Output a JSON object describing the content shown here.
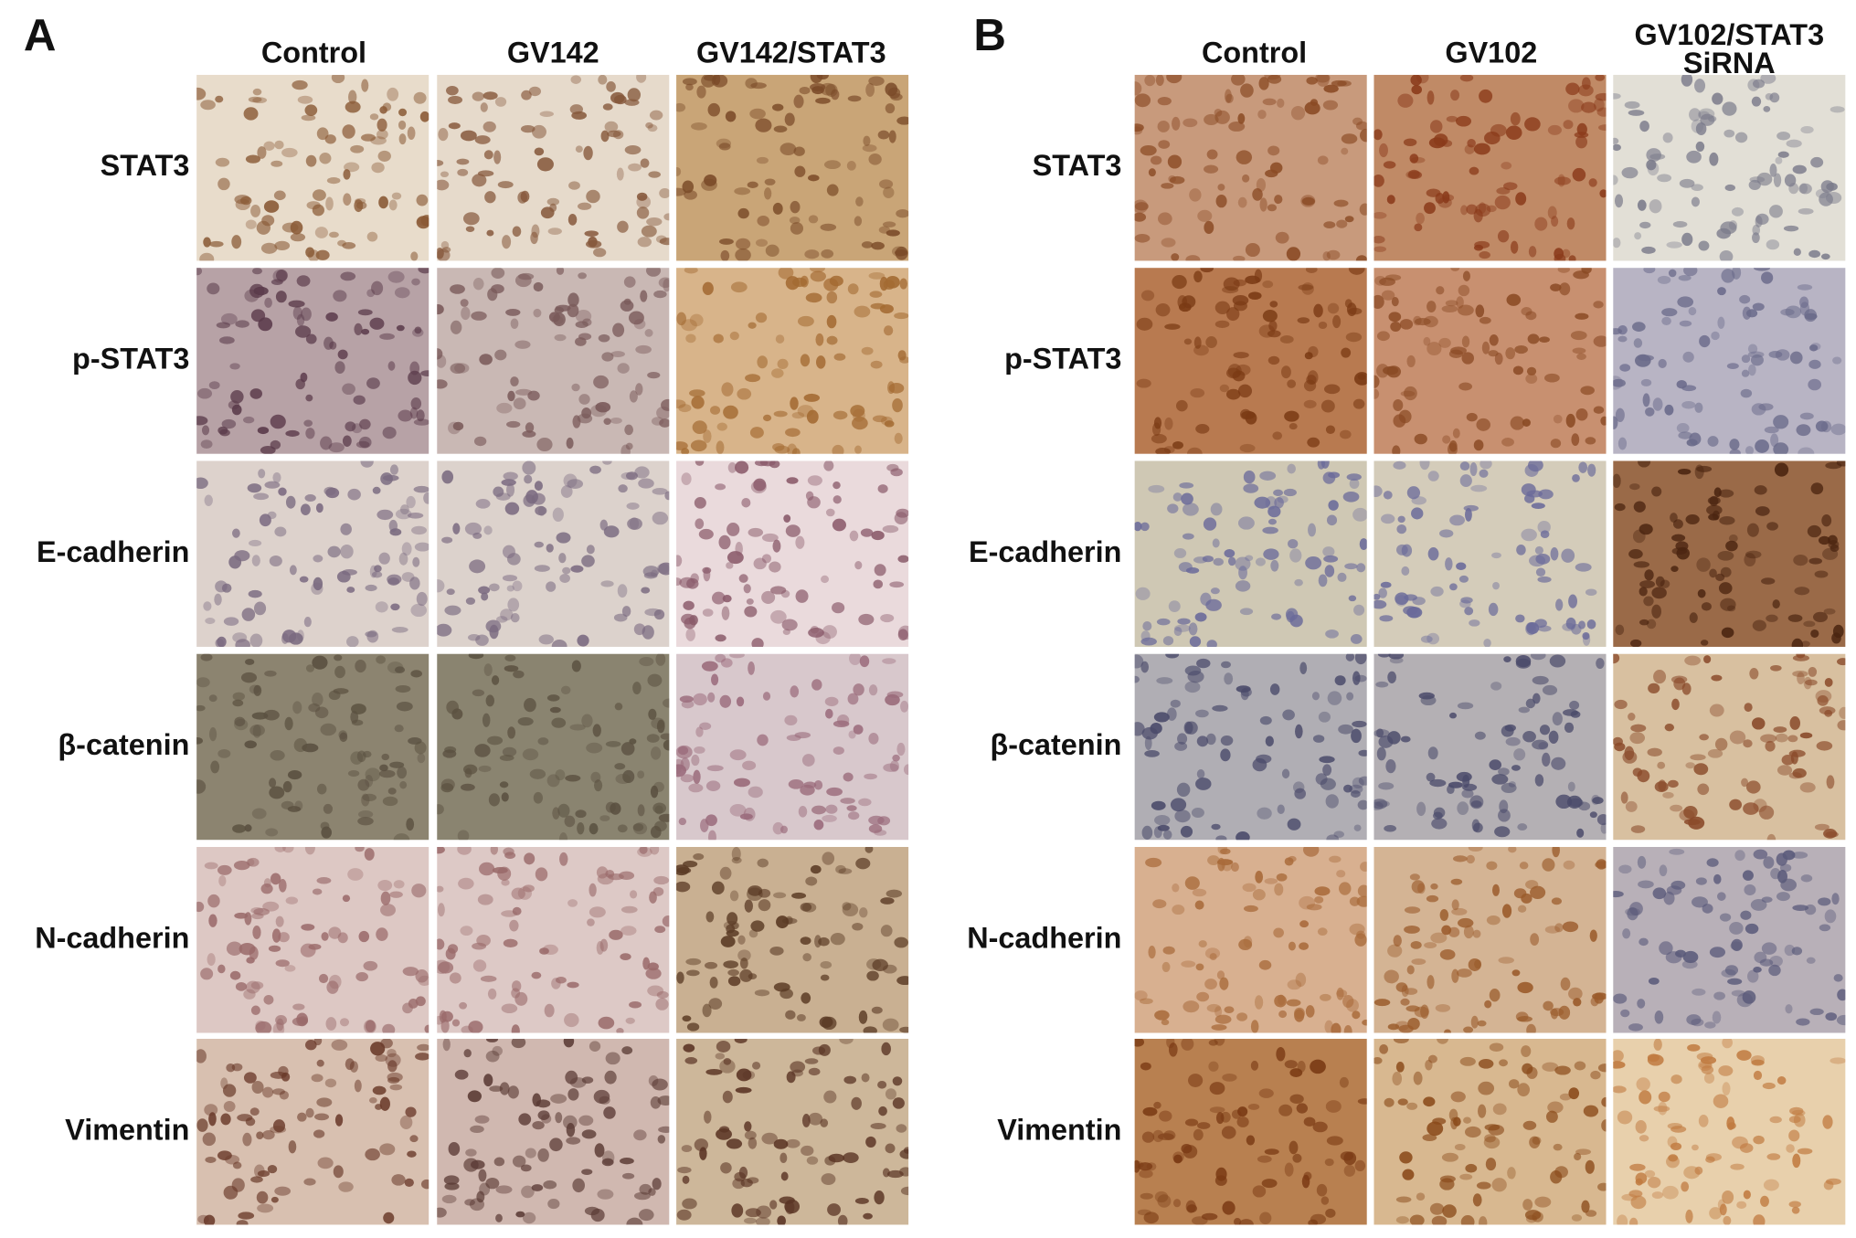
{
  "panels": [
    {
      "label": "A",
      "columns": [
        [
          "Control"
        ],
        [
          "GV142"
        ],
        [
          "GV142/STAT3"
        ]
      ],
      "rows": [
        "STAT3",
        "p-STAT3",
        "E-cadherin",
        "β-catenin",
        "N-cadherin",
        "Vimentin"
      ]
    },
    {
      "label": "B",
      "columns": [
        [
          "Control"
        ],
        [
          "GV102"
        ],
        [
          "GV102/STAT3",
          "SiRNA"
        ]
      ],
      "rows": [
        "STAT3",
        "p-STAT3",
        "E-cadherin",
        "β-catenin",
        "N-cadherin",
        "Vimentin"
      ]
    }
  ]
}
